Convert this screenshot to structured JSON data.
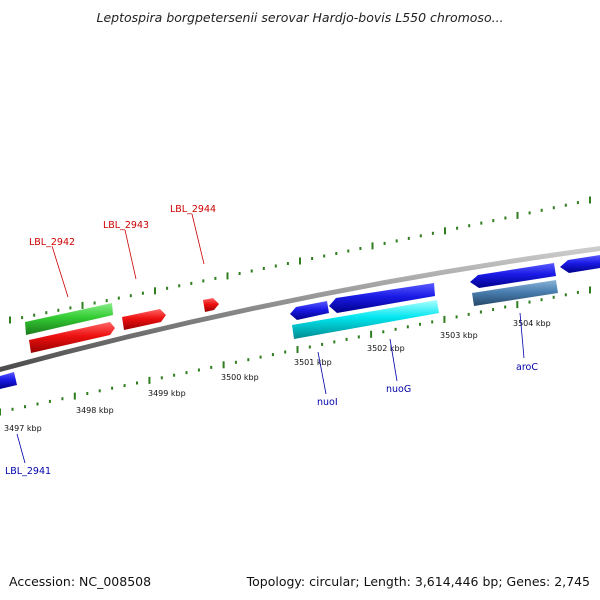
{
  "title": "Leptospira borgpetersenii serovar Hardjo-bovis L550 chromoso...",
  "footer": {
    "accession": "Accession: NC_008508",
    "summary": "Topology: circular; Length: 3,614,446 bp; Genes: 2,745"
  },
  "ticks": [
    "3497 kbp",
    "3498 kbp",
    "3499 kbp",
    "3500 kbp",
    "3501 kbp",
    "3502 kbp",
    "3503 kbp",
    "3504 kbp"
  ],
  "gene_labels_top": [
    "LBL_2942",
    "LBL_2943",
    "LBL_2944"
  ],
  "gene_labels_bottom": [
    "LBL_2941",
    "nuoI",
    "nuoG",
    "aroC"
  ],
  "colors": {
    "backbone": "#8a8a8a",
    "forward_gene": "#ee1111",
    "rna_gene": "#33cc33",
    "reverse_gene": "#1a1ae6",
    "cds_reverse": "#00e5ee",
    "other_feature": "#4a7fb0",
    "label_top": "#cc0000",
    "label_bottom": "#0000aa",
    "ruler": "#2e7d1f"
  }
}
